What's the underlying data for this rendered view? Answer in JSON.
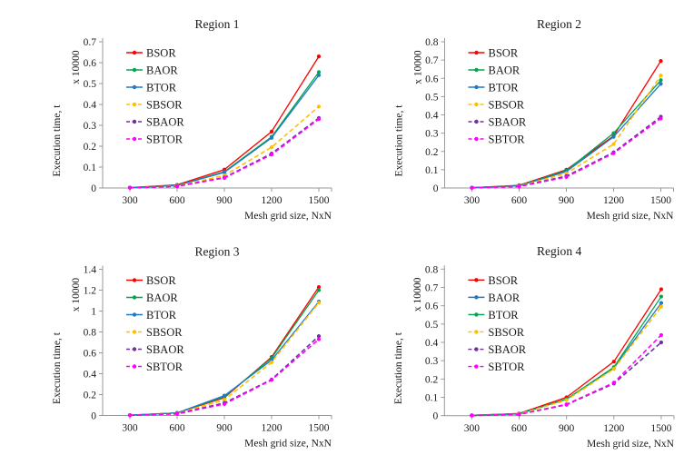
{
  "page": {
    "background": "#ffffff",
    "text_color": "#1a1a1a",
    "axis_color": "#9a9a9a"
  },
  "chart_data": [
    {
      "type": "line",
      "title": "Region 1",
      "xlabel": "Mesh grid size, NxN",
      "ylabel": "Execution time, t",
      "y_axis_multiplier": "x 10000",
      "x": [
        300,
        600,
        900,
        1200,
        1500
      ],
      "ylim": [
        0,
        0.7
      ],
      "ytick_step": 0.1,
      "grid": false,
      "legend_position": "upper-left",
      "series": [
        {
          "name": "BSOR",
          "color": "#FF0000",
          "style": "solid",
          "values": [
            0.002,
            0.015,
            0.088,
            0.27,
            0.63
          ]
        },
        {
          "name": "BAOR",
          "color": "#00A550",
          "style": "solid",
          "values": [
            0.002,
            0.012,
            0.078,
            0.245,
            0.555
          ]
        },
        {
          "name": "BTOR",
          "color": "#1F78C8",
          "style": "solid",
          "values": [
            0.002,
            0.012,
            0.075,
            0.24,
            0.54
          ]
        },
        {
          "name": "SBSOR",
          "color": "#FFC000",
          "style": "dashed",
          "values": [
            0.001,
            0.01,
            0.06,
            0.195,
            0.39
          ]
        },
        {
          "name": "SBAOR",
          "color": "#7030A0",
          "style": "dashed",
          "values": [
            0.001,
            0.008,
            0.05,
            0.165,
            0.335
          ]
        },
        {
          "name": "SBTOR",
          "color": "#FF00FF",
          "style": "dashed",
          "values": [
            0.001,
            0.008,
            0.048,
            0.16,
            0.33
          ]
        }
      ]
    },
    {
      "type": "line",
      "title": "Region 2",
      "xlabel": "Mesh grid size, NxN",
      "ylabel": "Execution time, t",
      "y_axis_multiplier": "x 10000",
      "x": [
        300,
        600,
        900,
        1200,
        1500
      ],
      "ylim": [
        0,
        0.8
      ],
      "ytick_step": 0.1,
      "grid": false,
      "legend_position": "upper-left",
      "series": [
        {
          "name": "BSOR",
          "color": "#FF0000",
          "style": "solid",
          "values": [
            0.002,
            0.015,
            0.1,
            0.285,
            0.695
          ]
        },
        {
          "name": "BAOR",
          "color": "#00A550",
          "style": "solid",
          "values": [
            0.002,
            0.013,
            0.095,
            0.3,
            0.59
          ]
        },
        {
          "name": "BTOR",
          "color": "#1F78C8",
          "style": "solid",
          "values": [
            0.002,
            0.012,
            0.09,
            0.28,
            0.57
          ]
        },
        {
          "name": "SBSOR",
          "color": "#FFC000",
          "style": "dashed",
          "values": [
            0.001,
            0.01,
            0.08,
            0.24,
            0.615
          ]
        },
        {
          "name": "SBAOR",
          "color": "#7030A0",
          "style": "dashed",
          "values": [
            0.001,
            0.009,
            0.065,
            0.195,
            0.39
          ]
        },
        {
          "name": "SBTOR",
          "color": "#FF00FF",
          "style": "dashed",
          "values": [
            0.001,
            0.008,
            0.06,
            0.19,
            0.38
          ]
        }
      ]
    },
    {
      "type": "line",
      "title": "Region 3",
      "xlabel": "Mesh grid size, NxN",
      "ylabel": "Execution time, t",
      "y_axis_multiplier": "x 10000",
      "x": [
        300,
        600,
        900,
        1200,
        1500
      ],
      "ylim": [
        0,
        1.4
      ],
      "ytick_step": 0.2,
      "grid": false,
      "legend_position": "upper-left",
      "series": [
        {
          "name": "BSOR",
          "color": "#FF0000",
          "style": "solid",
          "values": [
            0.003,
            0.025,
            0.17,
            0.56,
            1.23
          ]
        },
        {
          "name": "BAOR",
          "color": "#00A550",
          "style": "solid",
          "values": [
            0.003,
            0.025,
            0.18,
            0.55,
            1.2
          ]
        },
        {
          "name": "BTOR",
          "color": "#1F78C8",
          "style": "solid",
          "values": [
            0.003,
            0.025,
            0.19,
            0.53,
            1.09
          ]
        },
        {
          "name": "SBSOR",
          "color": "#FFC000",
          "style": "dashed",
          "values": [
            0.002,
            0.02,
            0.15,
            0.51,
            1.08
          ]
        },
        {
          "name": "SBAOR",
          "color": "#7030A0",
          "style": "dashed",
          "values": [
            0.002,
            0.018,
            0.12,
            0.345,
            0.76
          ]
        },
        {
          "name": "SBTOR",
          "color": "#FF00FF",
          "style": "dashed",
          "values": [
            0.002,
            0.015,
            0.11,
            0.34,
            0.73
          ]
        }
      ]
    },
    {
      "type": "line",
      "title": "Region 4",
      "xlabel": "Mesh grid size, NxN",
      "ylabel": "Execution time, t",
      "y_axis_multiplier": "x 10000",
      "x": [
        300,
        600,
        900,
        1200,
        1500
      ],
      "ylim": [
        0,
        0.8
      ],
      "ytick_step": 0.1,
      "grid": false,
      "legend_position": "upper-left",
      "series": [
        {
          "name": "BSOR",
          "color": "#FF0000",
          "style": "solid",
          "values": [
            0.002,
            0.012,
            0.1,
            0.295,
            0.69
          ]
        },
        {
          "name": "BAOR",
          "color": "#1F78C8",
          "style": "solid",
          "values": [
            0.002,
            0.01,
            0.09,
            0.26,
            0.615
          ]
        },
        {
          "name": "BTOR",
          "color": "#00A550",
          "style": "solid",
          "values": [
            0.002,
            0.01,
            0.09,
            0.265,
            0.65
          ]
        },
        {
          "name": "SBSOR",
          "color": "#FFC000",
          "style": "dashed",
          "values": [
            0.001,
            0.009,
            0.085,
            0.255,
            0.595
          ]
        },
        {
          "name": "SBAOR",
          "color": "#7030A0",
          "style": "dashed",
          "values": [
            0.001,
            0.007,
            0.06,
            0.175,
            0.4
          ]
        },
        {
          "name": "SBTOR",
          "color": "#FF00FF",
          "style": "dashed",
          "values": [
            0.001,
            0.007,
            0.062,
            0.18,
            0.44
          ]
        }
      ]
    }
  ]
}
